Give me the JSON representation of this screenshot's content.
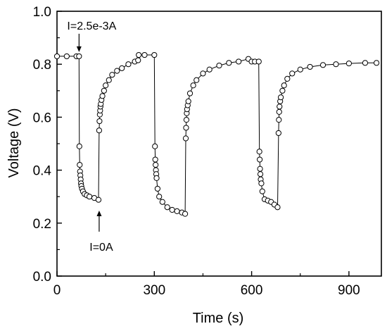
{
  "chart_data": {
    "type": "scatter",
    "title": "",
    "xlabel": "Time (s)",
    "ylabel": "Voltage (V)",
    "xlim": [
      0,
      1000
    ],
    "ylim": [
      0.0,
      1.0
    ],
    "xticks": [
      0,
      300,
      600,
      900
    ],
    "yticks": [
      0.0,
      0.2,
      0.4,
      0.6,
      0.8,
      1.0
    ],
    "grid": false,
    "marker": "open-circle",
    "marker_color": "#000000",
    "annotations": [
      {
        "text": "I=2.5e-3A",
        "x": 68,
        "y": 0.83,
        "arrow": "down"
      },
      {
        "text": "I=0A",
        "x": 130,
        "y": 0.29,
        "arrow": "up"
      }
    ],
    "series": [
      {
        "values": [
          [
            0,
            0.83
          ],
          [
            30,
            0.83
          ],
          [
            60,
            0.83
          ],
          [
            68,
            0.83
          ],
          [
            69,
            0.49
          ],
          [
            70,
            0.42
          ],
          [
            71,
            0.395
          ],
          [
            72,
            0.38
          ],
          [
            73,
            0.365
          ],
          [
            74,
            0.35
          ],
          [
            75,
            0.34
          ],
          [
            77,
            0.33
          ],
          [
            80,
            0.32
          ],
          [
            85,
            0.31
          ],
          [
            92,
            0.305
          ],
          [
            100,
            0.3
          ],
          [
            115,
            0.295
          ],
          [
            128,
            0.288
          ],
          [
            130,
            0.55
          ],
          [
            131,
            0.585
          ],
          [
            132,
            0.61
          ],
          [
            133,
            0.625
          ],
          [
            134,
            0.64
          ],
          [
            135,
            0.65
          ],
          [
            137,
            0.665
          ],
          [
            140,
            0.68
          ],
          [
            145,
            0.7
          ],
          [
            150,
            0.72
          ],
          [
            160,
            0.74
          ],
          [
            170,
            0.76
          ],
          [
            185,
            0.775
          ],
          [
            200,
            0.785
          ],
          [
            220,
            0.8
          ],
          [
            240,
            0.81
          ],
          [
            250,
            0.815
          ],
          [
            252,
            0.835
          ],
          [
            270,
            0.835
          ],
          [
            300,
            0.835
          ],
          [
            302,
            0.49
          ],
          [
            303,
            0.44
          ],
          [
            304,
            0.42
          ],
          [
            305,
            0.4
          ],
          [
            306,
            0.385
          ],
          [
            307,
            0.37
          ],
          [
            310,
            0.33
          ],
          [
            315,
            0.3
          ],
          [
            325,
            0.28
          ],
          [
            340,
            0.26
          ],
          [
            355,
            0.25
          ],
          [
            370,
            0.245
          ],
          [
            385,
            0.24
          ],
          [
            395,
            0.235
          ],
          [
            397,
            0.52
          ],
          [
            398,
            0.56
          ],
          [
            399,
            0.59
          ],
          [
            400,
            0.615
          ],
          [
            401,
            0.63
          ],
          [
            403,
            0.645
          ],
          [
            405,
            0.66
          ],
          [
            410,
            0.69
          ],
          [
            420,
            0.72
          ],
          [
            430,
            0.74
          ],
          [
            450,
            0.765
          ],
          [
            470,
            0.78
          ],
          [
            500,
            0.795
          ],
          [
            530,
            0.805
          ],
          [
            560,
            0.81
          ],
          [
            590,
            0.82
          ],
          [
            600,
            0.81
          ],
          [
            610,
            0.81
          ],
          [
            622,
            0.81
          ],
          [
            624,
            0.47
          ],
          [
            625,
            0.44
          ],
          [
            626,
            0.405
          ],
          [
            627,
            0.385
          ],
          [
            628,
            0.365
          ],
          [
            630,
            0.35
          ],
          [
            633,
            0.32
          ],
          [
            640,
            0.29
          ],
          [
            650,
            0.285
          ],
          [
            660,
            0.28
          ],
          [
            670,
            0.27
          ],
          [
            680,
            0.26
          ],
          [
            683,
            0.54
          ],
          [
            684,
            0.59
          ],
          [
            685,
            0.62
          ],
          [
            686,
            0.64
          ],
          [
            688,
            0.66
          ],
          [
            690,
            0.675
          ],
          [
            695,
            0.7
          ],
          [
            700,
            0.72
          ],
          [
            710,
            0.745
          ],
          [
            725,
            0.765
          ],
          [
            750,
            0.78
          ],
          [
            780,
            0.79
          ],
          [
            820,
            0.797
          ],
          [
            860,
            0.8
          ],
          [
            900,
            0.803
          ],
          [
            950,
            0.805
          ],
          [
            985,
            0.805
          ]
        ]
      }
    ]
  }
}
